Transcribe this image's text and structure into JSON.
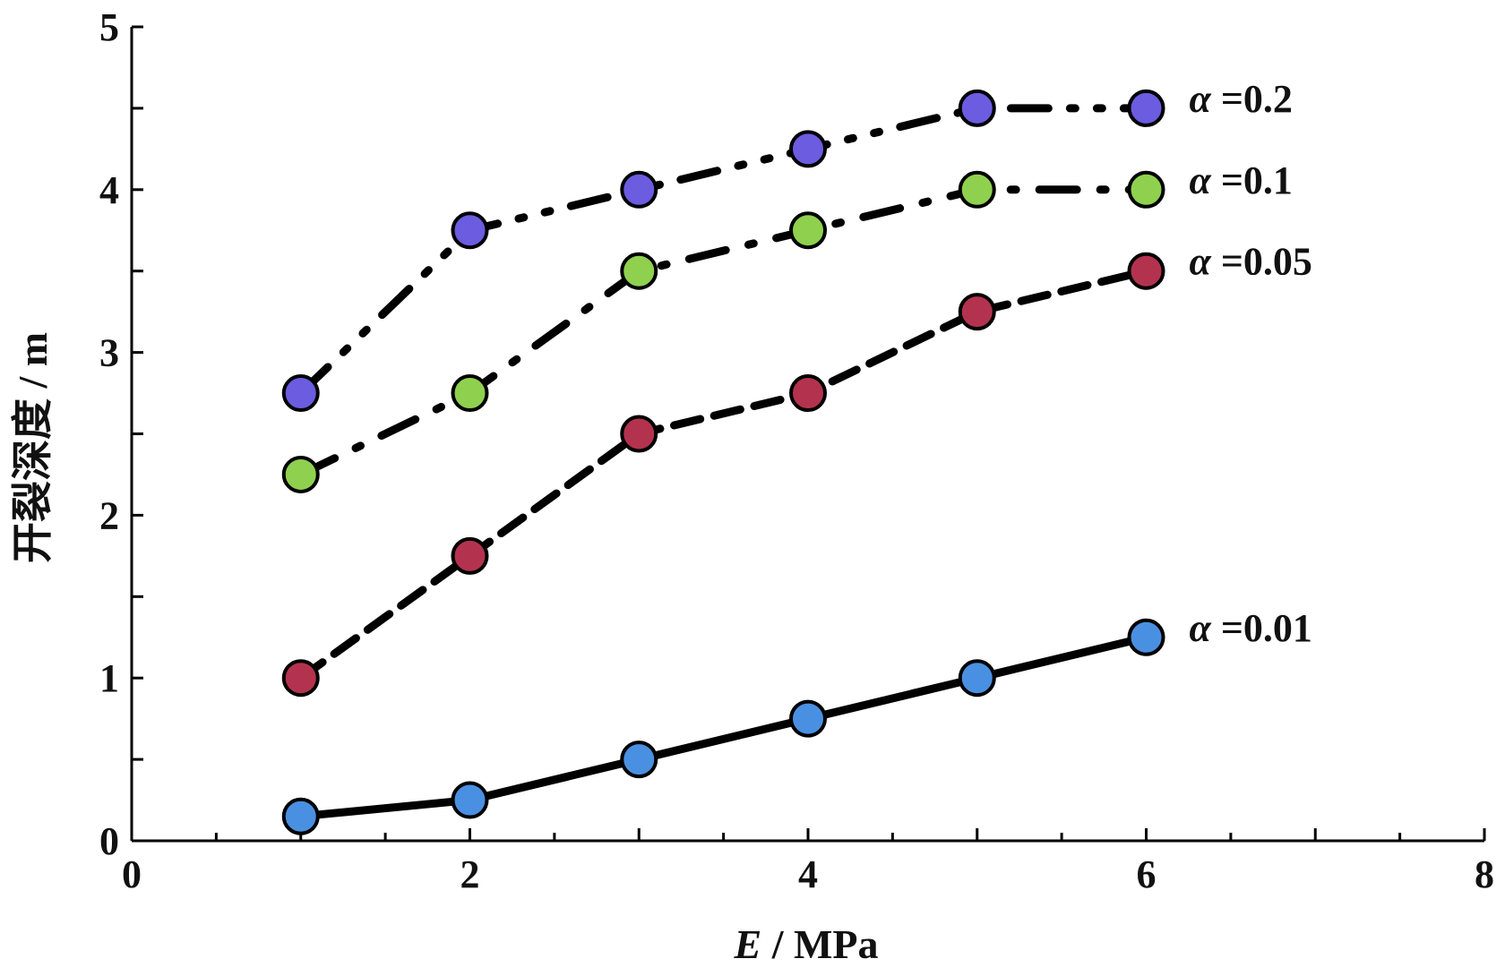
{
  "chart_data": {
    "type": "line",
    "xlabel_italic": "E",
    "xlabel_rest": " / MPa",
    "ylabel": "开裂深度 / m",
    "xlim": [
      0,
      8
    ],
    "ylim": [
      0,
      5
    ],
    "x_ticks": [
      0,
      2,
      4,
      6,
      8
    ],
    "y_ticks": [
      0,
      1,
      2,
      3,
      4,
      5
    ],
    "grid": false,
    "legend_placement": "inline-right",
    "series": [
      {
        "key": "a02",
        "name": "α =0.2",
        "label_greek": "α",
        "label_rest": " =0.2",
        "x": [
          1,
          2,
          3,
          4,
          5,
          6
        ],
        "y": [
          2.75,
          3.75,
          4.0,
          4.25,
          4.5,
          4.5
        ],
        "color": "#6b5ce0",
        "line_style": "dash-dot-dot"
      },
      {
        "key": "a01",
        "name": "α =0.1",
        "label_greek": "α",
        "label_rest": " =0.1",
        "x": [
          1,
          2,
          3,
          4,
          5,
          6
        ],
        "y": [
          2.25,
          2.75,
          3.5,
          3.75,
          4.0,
          4.0
        ],
        "color": "#8fd14f",
        "line_style": "dash-dot"
      },
      {
        "key": "a005",
        "name": "α =0.05",
        "label_greek": "α",
        "label_rest": " =0.05",
        "x": [
          1,
          2,
          3,
          4,
          5,
          6
        ],
        "y": [
          1.0,
          1.75,
          2.5,
          2.75,
          3.25,
          3.5
        ],
        "color": "#b3334f",
        "line_style": "dashed"
      },
      {
        "key": "a001",
        "name": "α =0.01",
        "label_greek": "α",
        "label_rest": " =0.01",
        "x": [
          1,
          2,
          3,
          4,
          5,
          6
        ],
        "y": [
          0.15,
          0.25,
          0.5,
          0.75,
          1.0,
          1.25
        ],
        "color": "#4a90e2",
        "line_style": "solid"
      }
    ]
  }
}
